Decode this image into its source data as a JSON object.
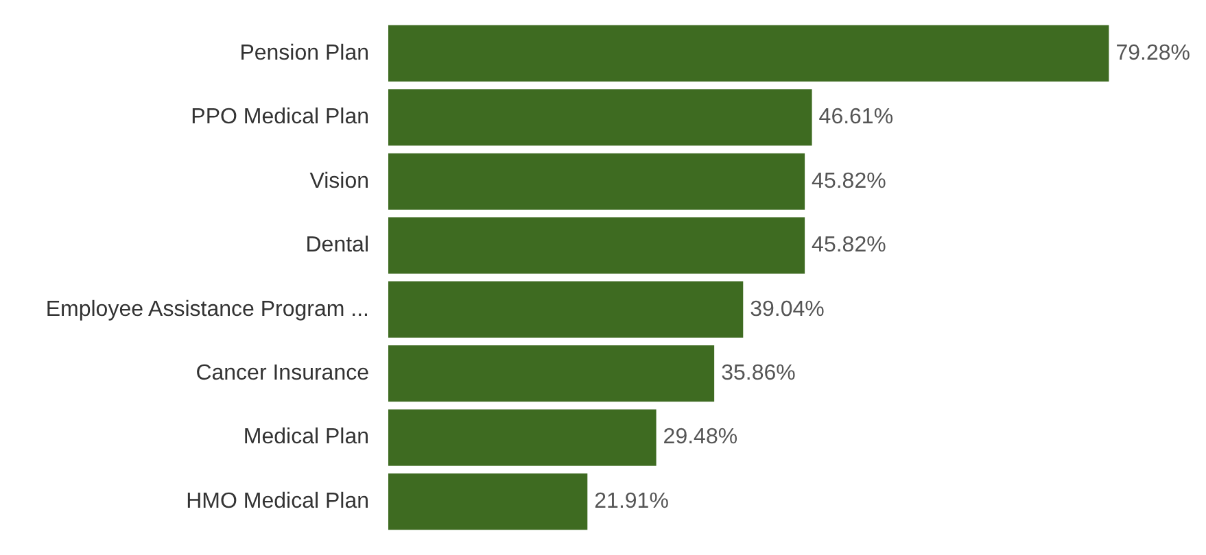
{
  "chart_data": {
    "type": "bar",
    "orientation": "horizontal",
    "categories": [
      "Pension Plan",
      "PPO Medical Plan",
      "Vision",
      "Dental",
      "Employee Assistance Program ...",
      "Cancer Insurance",
      "Medical Plan",
      "HMO Medical Plan"
    ],
    "values": [
      79.28,
      46.61,
      45.82,
      45.82,
      39.04,
      35.86,
      29.48,
      21.91
    ],
    "value_labels": [
      "79.28%",
      "46.61%",
      "45.82%",
      "45.82%",
      "39.04%",
      "35.86%",
      "29.48%",
      "21.91%"
    ],
    "color": "#3e6b21",
    "tick_labels": "y"
  }
}
